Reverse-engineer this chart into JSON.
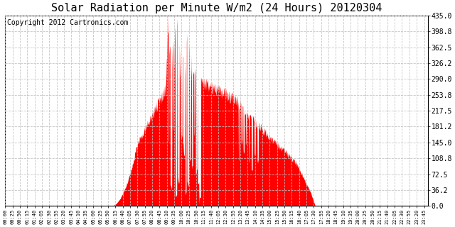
{
  "title": "Solar Radiation per Minute W/m2 (24 Hours) 20120304",
  "copyright_text": "Copyright 2012 Cartronics.com",
  "y_min": 0.0,
  "y_max": 435.0,
  "y_ticks": [
    0.0,
    36.2,
    72.5,
    108.8,
    145.0,
    181.2,
    217.5,
    253.8,
    290.0,
    326.2,
    362.5,
    398.8,
    435.0
  ],
  "fill_color": "#FF0000",
  "line_color": "#FF0000",
  "dashed_line_color": "#FF0000",
  "bg_color": "#FFFFFF",
  "grid_color": "#C0C0C0",
  "title_fontsize": 11,
  "copyright_fontsize": 7,
  "total_minutes": 1440
}
